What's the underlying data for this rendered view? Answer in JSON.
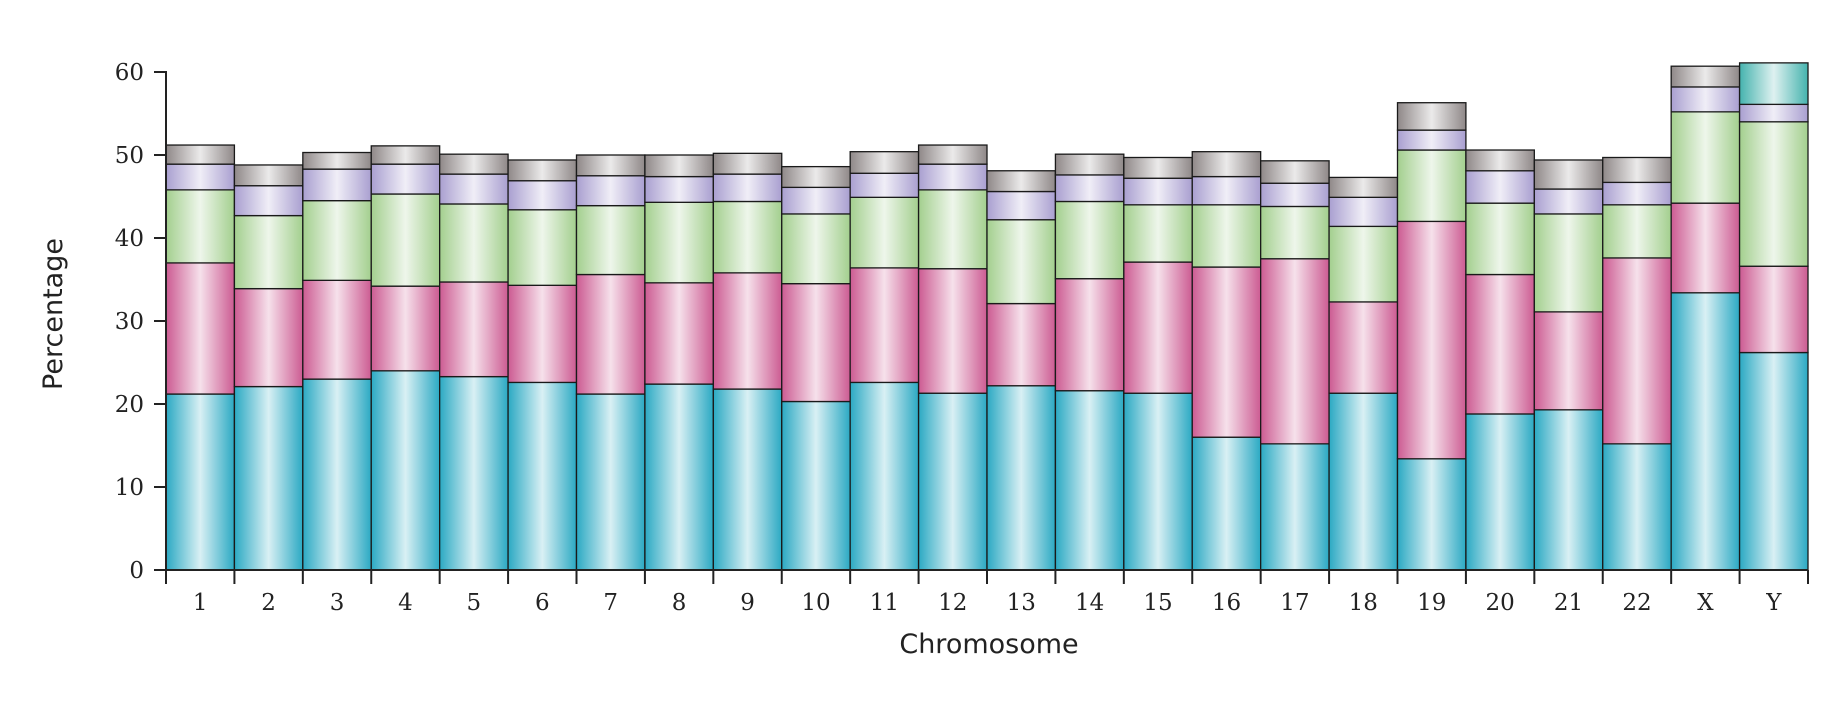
{
  "chart_data": {
    "type": "bar",
    "stacked": true,
    "xlabel": "Chromosome",
    "ylabel": "Percentage",
    "ylim": [
      0,
      60
    ],
    "yticks": [
      0,
      10,
      20,
      30,
      40,
      50,
      60
    ],
    "grid": false,
    "categories": [
      "1",
      "2",
      "3",
      "4",
      "5",
      "6",
      "7",
      "8",
      "9",
      "10",
      "11",
      "12",
      "13",
      "14",
      "15",
      "16",
      "17",
      "18",
      "19",
      "20",
      "21",
      "22",
      "X",
      "Y"
    ],
    "series": [
      {
        "color": "#2ba9c3",
        "values": [
          21.2,
          22.1,
          23.0,
          24.0,
          23.3,
          22.6,
          21.2,
          22.4,
          21.8,
          20.3,
          22.6,
          21.3,
          22.2,
          21.6,
          21.3,
          16.0,
          15.2,
          21.3,
          13.4,
          18.8,
          19.3,
          15.2,
          33.4,
          26.2
        ]
      },
      {
        "color": "#cc5b92",
        "values": [
          15.8,
          11.8,
          11.9,
          10.2,
          11.4,
          11.7,
          14.4,
          12.2,
          14.0,
          14.2,
          13.8,
          15.0,
          9.9,
          13.5,
          15.8,
          20.5,
          22.3,
          11.0,
          28.6,
          16.8,
          11.8,
          22.4,
          10.8,
          10.4
        ]
      },
      {
        "color": "#a3cf8e",
        "values": [
          8.8,
          8.8,
          9.6,
          11.1,
          9.4,
          9.1,
          8.3,
          9.7,
          8.6,
          8.4,
          8.5,
          9.5,
          10.1,
          9.3,
          6.9,
          7.5,
          6.3,
          9.1,
          8.6,
          8.6,
          11.8,
          6.4,
          11.0,
          17.4
        ]
      },
      {
        "color": "#a99fd0",
        "values": [
          3.1,
          3.6,
          3.8,
          3.6,
          3.6,
          3.5,
          3.6,
          3.1,
          3.3,
          3.2,
          2.9,
          3.1,
          3.4,
          3.2,
          3.2,
          3.4,
          2.8,
          3.5,
          2.4,
          3.9,
          3.0,
          2.7,
          3.0,
          2.1
        ]
      },
      {
        "color": "#8f8888",
        "values": [
          2.3,
          2.5,
          2.0,
          2.2,
          2.4,
          2.5,
          2.5,
          2.6,
          2.5,
          2.5,
          2.6,
          2.3,
          2.5,
          2.5,
          2.5,
          3.0,
          2.7,
          2.4,
          3.3,
          2.5,
          3.5,
          3.0,
          2.5,
          0
        ]
      },
      {
        "color": "#45b3ae",
        "values": [
          0,
          0,
          0,
          0,
          0,
          0,
          0,
          0,
          0,
          0,
          0,
          0,
          0,
          0,
          0,
          0,
          0,
          0,
          0,
          0,
          0,
          0,
          0,
          5.0
        ]
      }
    ]
  }
}
